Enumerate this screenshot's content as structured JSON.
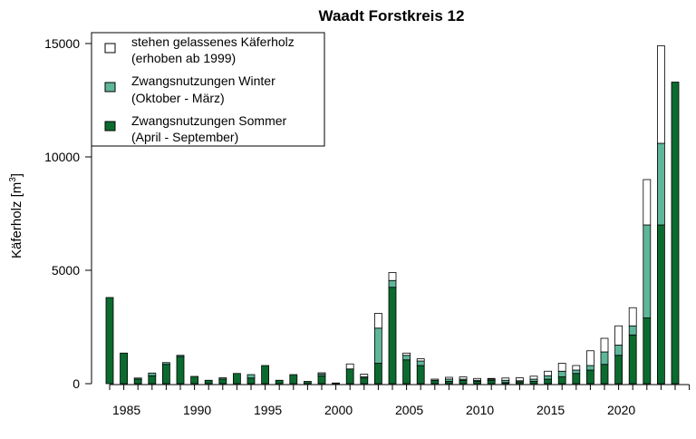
{
  "chart_data": {
    "type": "bar",
    "stacked": true,
    "title": "Waadt Forstkreis 12",
    "xlabel": "",
    "ylabel": "Käferholz [m",
    "ylabel_superscript": "3",
    "ylabel_close": "]",
    "ylim": [
      0,
      16000
    ],
    "yticks": [
      0,
      5000,
      10000,
      15000
    ],
    "xlim": [
      1983,
      2025
    ],
    "xticks": [
      1985,
      1990,
      1995,
      2000,
      2005,
      2010,
      2015,
      2020
    ],
    "legend_position": "top-left",
    "categories": [
      1984,
      1985,
      1986,
      1987,
      1988,
      1989,
      1990,
      1991,
      1992,
      1993,
      1994,
      1995,
      1996,
      1997,
      1998,
      1999,
      2000,
      2001,
      2002,
      2003,
      2004,
      2005,
      2006,
      2007,
      2008,
      2009,
      2010,
      2011,
      2012,
      2013,
      2014,
      2015,
      2016,
      2017,
      2018,
      2019,
      2020,
      2021,
      2022,
      2023,
      2024
    ],
    "series": [
      {
        "name": "Zwangsnutzungen Sommer",
        "name_line2": "(April - September)",
        "color": "#0b6b2f",
        "values": [
          3800,
          1350,
          200,
          350,
          850,
          1200,
          320,
          150,
          200,
          450,
          250,
          800,
          150,
          400,
          100,
          350,
          20,
          650,
          250,
          900,
          4250,
          1050,
          800,
          150,
          100,
          150,
          100,
          150,
          50,
          80,
          100,
          200,
          300,
          450,
          600,
          850,
          1250,
          2150,
          2900,
          7000,
          13300
        ]
      },
      {
        "name": "Zwangsnutzungen Winter",
        "name_line2": "(Oktober - März)",
        "color": "#5fb69a",
        "values": [
          0,
          0,
          50,
          120,
          80,
          50,
          0,
          0,
          60,
          0,
          150,
          0,
          0,
          0,
          0,
          80,
          0,
          0,
          50,
          1550,
          300,
          200,
          200,
          0,
          100,
          50,
          50,
          50,
          100,
          50,
          100,
          150,
          250,
          150,
          200,
          550,
          450,
          400,
          4100,
          3600,
          0
        ]
      },
      {
        "name": "stehen gelassenes Käferholz",
        "name_line2": "(erhoben ab 1999)",
        "color": "#ffffff",
        "values": [
          0,
          0,
          0,
          0,
          0,
          0,
          0,
          0,
          0,
          0,
          0,
          0,
          0,
          0,
          0,
          50,
          10,
          220,
          120,
          650,
          350,
          100,
          100,
          50,
          80,
          100,
          80,
          30,
          100,
          130,
          130,
          200,
          350,
          200,
          650,
          600,
          850,
          800,
          2000,
          4300,
          0
        ]
      }
    ]
  }
}
